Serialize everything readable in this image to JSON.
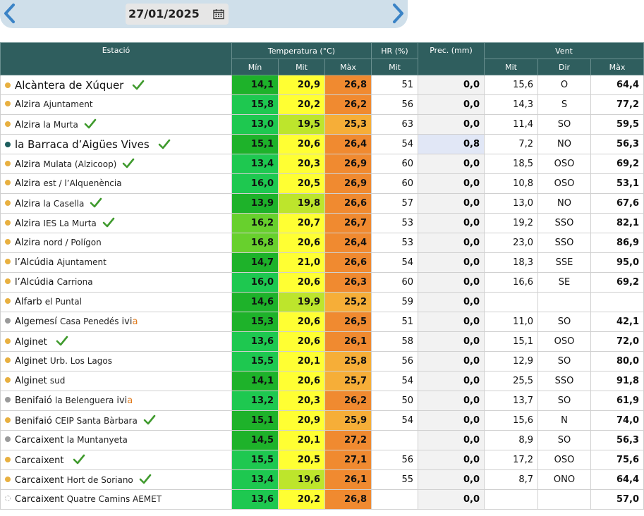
{
  "date": "27/01/2025",
  "icons": {
    "prev": "chevron-left-icon",
    "next": "chevron-right-icon",
    "calendar": "calendar-icon",
    "check": "checkmark-icon"
  },
  "colors": {
    "header": "#2f5e5e",
    "arrow": "#3a83c6",
    "dot_orange": "#e8b040",
    "dot_gray": "#9a9a9a",
    "dot_teal": "#1d5e5e",
    "check": "#3f9a2d",
    "max": "#f08a30",
    "max_light": "#f6ae38",
    "mit": "#ffff33",
    "mit_lime": "#bde52c",
    "min_dark": "#1eb22a",
    "min_mid": "#1ec850",
    "min_light": "#68d02d"
  },
  "headers": {
    "station": "Estació",
    "temperature": "Temperatura (°C)",
    "hr": "HR (%)",
    "prec": "Prec. (mm)",
    "wind": "Vent",
    "min": "Mín",
    "mit": "Mit",
    "max": "Màx",
    "hr_mit": "Mit",
    "wind_mit": "Mit",
    "wind_dir": "Dir",
    "wind_max": "Màx"
  },
  "rows": [
    {
      "name": "Alcàntera de Xúquer",
      "sub": "",
      "ivi": false,
      "dot": "orange",
      "check": true,
      "big": true,
      "min": "14,1",
      "mit": "20,9",
      "max": "26,8",
      "hr": "51",
      "prec": "0,0",
      "wmit": "15,6",
      "wdir": "O",
      "wmax": "64,4",
      "minc": "#1eb22a",
      "mitc": "#ffff33",
      "maxc": "#f08a30",
      "hl": false
    },
    {
      "name": "Alzira",
      "sub": "Ajuntament",
      "ivi": false,
      "dot": "orange",
      "check": false,
      "big": false,
      "min": "15,8",
      "mit": "20,2",
      "max": "26,2",
      "hr": "56",
      "prec": "0,0",
      "wmit": "14,3",
      "wdir": "S",
      "wmax": "77,2",
      "minc": "#1ec850",
      "mitc": "#ffff33",
      "maxc": "#f08a30",
      "hl": false
    },
    {
      "name": "Alzira",
      "sub": "la Murta",
      "ivi": false,
      "dot": "orange",
      "check": true,
      "big": false,
      "min": "13,0",
      "mit": "19,5",
      "max": "25,3",
      "hr": "63",
      "prec": "0,0",
      "wmit": "11,4",
      "wdir": "SO",
      "wmax": "59,5",
      "minc": "#1ec850",
      "mitc": "#bde52c",
      "maxc": "#f6ae38",
      "hl": false
    },
    {
      "name": "la Barraca d’Aigües Vives",
      "sub": "",
      "ivi": false,
      "dot": "teal",
      "check": true,
      "big": true,
      "min": "15,1",
      "mit": "20,6",
      "max": "26,4",
      "hr": "54",
      "prec": "0,8",
      "wmit": "7,2",
      "wdir": "NO",
      "wmax": "56,3",
      "minc": "#1eb22a",
      "mitc": "#ffff33",
      "maxc": "#f08a30",
      "hl": true
    },
    {
      "name": "Alzira",
      "sub": "Mulata (Alzicoop)",
      "ivi": false,
      "dot": "orange",
      "check": true,
      "big": false,
      "min": "13,4",
      "mit": "20,3",
      "max": "26,9",
      "hr": "60",
      "prec": "0,0",
      "wmit": "18,5",
      "wdir": "OSO",
      "wmax": "69,2",
      "minc": "#1ec850",
      "mitc": "#ffff33",
      "maxc": "#f08a30",
      "hl": false
    },
    {
      "name": "Alzira",
      "sub": "est / l’Alquenència",
      "ivi": false,
      "dot": "orange",
      "check": false,
      "big": false,
      "min": "16,0",
      "mit": "20,5",
      "max": "26,9",
      "hr": "60",
      "prec": "0,0",
      "wmit": "10,8",
      "wdir": "OSO",
      "wmax": "53,1",
      "minc": "#1ec850",
      "mitc": "#ffff33",
      "maxc": "#f08a30",
      "hl": false
    },
    {
      "name": "Alzira",
      "sub": "la Casella",
      "ivi": false,
      "dot": "orange",
      "check": true,
      "big": false,
      "min": "13,9",
      "mit": "19,8",
      "max": "26,6",
      "hr": "57",
      "prec": "0,0",
      "wmit": "13,0",
      "wdir": "NO",
      "wmax": "67,6",
      "minc": "#1eb22a",
      "mitc": "#bde52c",
      "maxc": "#f08a30",
      "hl": false
    },
    {
      "name": "Alzira",
      "sub": "IES La Murta",
      "ivi": false,
      "dot": "orange",
      "check": true,
      "big": false,
      "min": "16,2",
      "mit": "20,7",
      "max": "26,7",
      "hr": "53",
      "prec": "0,0",
      "wmit": "19,2",
      "wdir": "SSO",
      "wmax": "82,1",
      "minc": "#68d02d",
      "mitc": "#ffff33",
      "maxc": "#f08a30",
      "hl": false
    },
    {
      "name": "Alzira",
      "sub": "nord / Polígon",
      "ivi": false,
      "dot": "orange",
      "check": false,
      "big": false,
      "min": "16,8",
      "mit": "20,6",
      "max": "26,4",
      "hr": "53",
      "prec": "0,0",
      "wmit": "23,0",
      "wdir": "SSO",
      "wmax": "86,9",
      "minc": "#68d02d",
      "mitc": "#ffff33",
      "maxc": "#f08a30",
      "hl": false
    },
    {
      "name": "l’Alcúdia",
      "sub": "Ajuntament",
      "ivi": false,
      "dot": "orange",
      "check": false,
      "big": false,
      "min": "14,7",
      "mit": "21,0",
      "max": "26,6",
      "hr": "54",
      "prec": "0,0",
      "wmit": "18,3",
      "wdir": "SSE",
      "wmax": "95,0",
      "minc": "#1eb22a",
      "mitc": "#ffff33",
      "maxc": "#f08a30",
      "hl": false
    },
    {
      "name": "l’Alcúdia",
      "sub": "Carriona",
      "ivi": false,
      "dot": "orange",
      "check": false,
      "big": false,
      "min": "16,0",
      "mit": "20,6",
      "max": "26,3",
      "hr": "60",
      "prec": "0,0",
      "wmit": "16,6",
      "wdir": "SE",
      "wmax": "69,2",
      "minc": "#1ec850",
      "mitc": "#ffff33",
      "maxc": "#f08a30",
      "hl": false
    },
    {
      "name": "Alfarb",
      "sub": "el Puntal",
      "ivi": false,
      "dot": "orange",
      "check": false,
      "big": false,
      "min": "14,6",
      "mit": "19,9",
      "max": "25,2",
      "hr": "59",
      "prec": "0,0",
      "wmit": "",
      "wdir": "",
      "wmax": "",
      "minc": "#1eb22a",
      "mitc": "#bde52c",
      "maxc": "#f6ae38",
      "hl": false
    },
    {
      "name": "Algemesí",
      "sub": "Casa Penedés",
      "ivi": true,
      "dot": "gray",
      "check": false,
      "big": false,
      "min": "15,3",
      "mit": "20,6",
      "max": "26,5",
      "hr": "51",
      "prec": "0,0",
      "wmit": "11,0",
      "wdir": "SO",
      "wmax": "42,1",
      "minc": "#1eb22a",
      "mitc": "#ffff33",
      "maxc": "#f08a30",
      "hl": false
    },
    {
      "name": "Alginet",
      "sub": "",
      "ivi": false,
      "dot": "orange",
      "check": true,
      "big": false,
      "min": "13,6",
      "mit": "20,6",
      "max": "26,1",
      "hr": "58",
      "prec": "0,0",
      "wmit": "15,1",
      "wdir": "OSO",
      "wmax": "72,0",
      "minc": "#1ec850",
      "mitc": "#ffff33",
      "maxc": "#f08a30",
      "hl": false
    },
    {
      "name": "Alginet",
      "sub": "Urb. Los Lagos",
      "ivi": false,
      "dot": "orange",
      "check": false,
      "big": false,
      "min": "15,5",
      "mit": "20,1",
      "max": "25,8",
      "hr": "56",
      "prec": "0,0",
      "wmit": "12,9",
      "wdir": "SO",
      "wmax": "80,0",
      "minc": "#1ec850",
      "mitc": "#ffff33",
      "maxc": "#f6ae38",
      "hl": false
    },
    {
      "name": "Alginet",
      "sub": "sud",
      "ivi": false,
      "dot": "orange",
      "check": false,
      "big": false,
      "min": "14,1",
      "mit": "20,6",
      "max": "25,7",
      "hr": "54",
      "prec": "0,0",
      "wmit": "25,5",
      "wdir": "SSO",
      "wmax": "91,8",
      "minc": "#1eb22a",
      "mitc": "#ffff33",
      "maxc": "#f6ae38",
      "hl": false
    },
    {
      "name": "Benifaió",
      "sub": "la Belenguera",
      "ivi": true,
      "dot": "gray",
      "check": false,
      "big": false,
      "min": "13,2",
      "mit": "20,3",
      "max": "26,2",
      "hr": "50",
      "prec": "0,0",
      "wmit": "13,7",
      "wdir": "SO",
      "wmax": "61,9",
      "minc": "#1ec850",
      "mitc": "#ffff33",
      "maxc": "#f08a30",
      "hl": false
    },
    {
      "name": "Benifaió",
      "sub": "CEIP Santa Bàrbara",
      "ivi": false,
      "dot": "orange",
      "check": true,
      "big": false,
      "min": "15,1",
      "mit": "20,9",
      "max": "25,9",
      "hr": "54",
      "prec": "0,0",
      "wmit": "15,6",
      "wdir": "N",
      "wmax": "74,0",
      "minc": "#1eb22a",
      "mitc": "#ffff33",
      "maxc": "#f6ae38",
      "hl": false
    },
    {
      "name": "Carcaixent",
      "sub": "la Muntanyeta",
      "ivi": false,
      "dot": "gray",
      "check": false,
      "big": false,
      "min": "14,5",
      "mit": "20,1",
      "max": "27,2",
      "hr": "",
      "prec": "0,0",
      "wmit": "8,9",
      "wdir": "SO",
      "wmax": "56,3",
      "minc": "#1eb22a",
      "mitc": "#ffff33",
      "maxc": "#f08a30",
      "hl": false
    },
    {
      "name": "Carcaixent",
      "sub": "",
      "ivi": false,
      "dot": "orange",
      "check": true,
      "big": false,
      "min": "15,5",
      "mit": "20,5",
      "max": "27,1",
      "hr": "56",
      "prec": "0,0",
      "wmit": "17,2",
      "wdir": "OSO",
      "wmax": "75,6",
      "minc": "#1ec850",
      "mitc": "#ffff33",
      "maxc": "#f08a30",
      "hl": false
    },
    {
      "name": "Carcaixent",
      "sub": "Hort de Soriano",
      "ivi": false,
      "dot": "orange",
      "check": true,
      "big": false,
      "min": "13,4",
      "mit": "19,6",
      "max": "26,1",
      "hr": "55",
      "prec": "0,0",
      "wmit": "8,7",
      "wdir": "ONO",
      "wmax": "64,4",
      "minc": "#1ec850",
      "mitc": "#bde52c",
      "maxc": "#f08a30",
      "hl": false
    },
    {
      "name": "Carcaixent",
      "sub": "Quatre Camins AEMET",
      "ivi": false,
      "dot": "empty",
      "check": false,
      "big": false,
      "min": "13,6",
      "mit": "20,2",
      "max": "26,8",
      "hr": "",
      "prec": "0,0",
      "wmit": "",
      "wdir": "",
      "wmax": "57,0",
      "minc": "#1ec850",
      "mitc": "#ffff33",
      "maxc": "#f08a30",
      "hl": false
    }
  ]
}
